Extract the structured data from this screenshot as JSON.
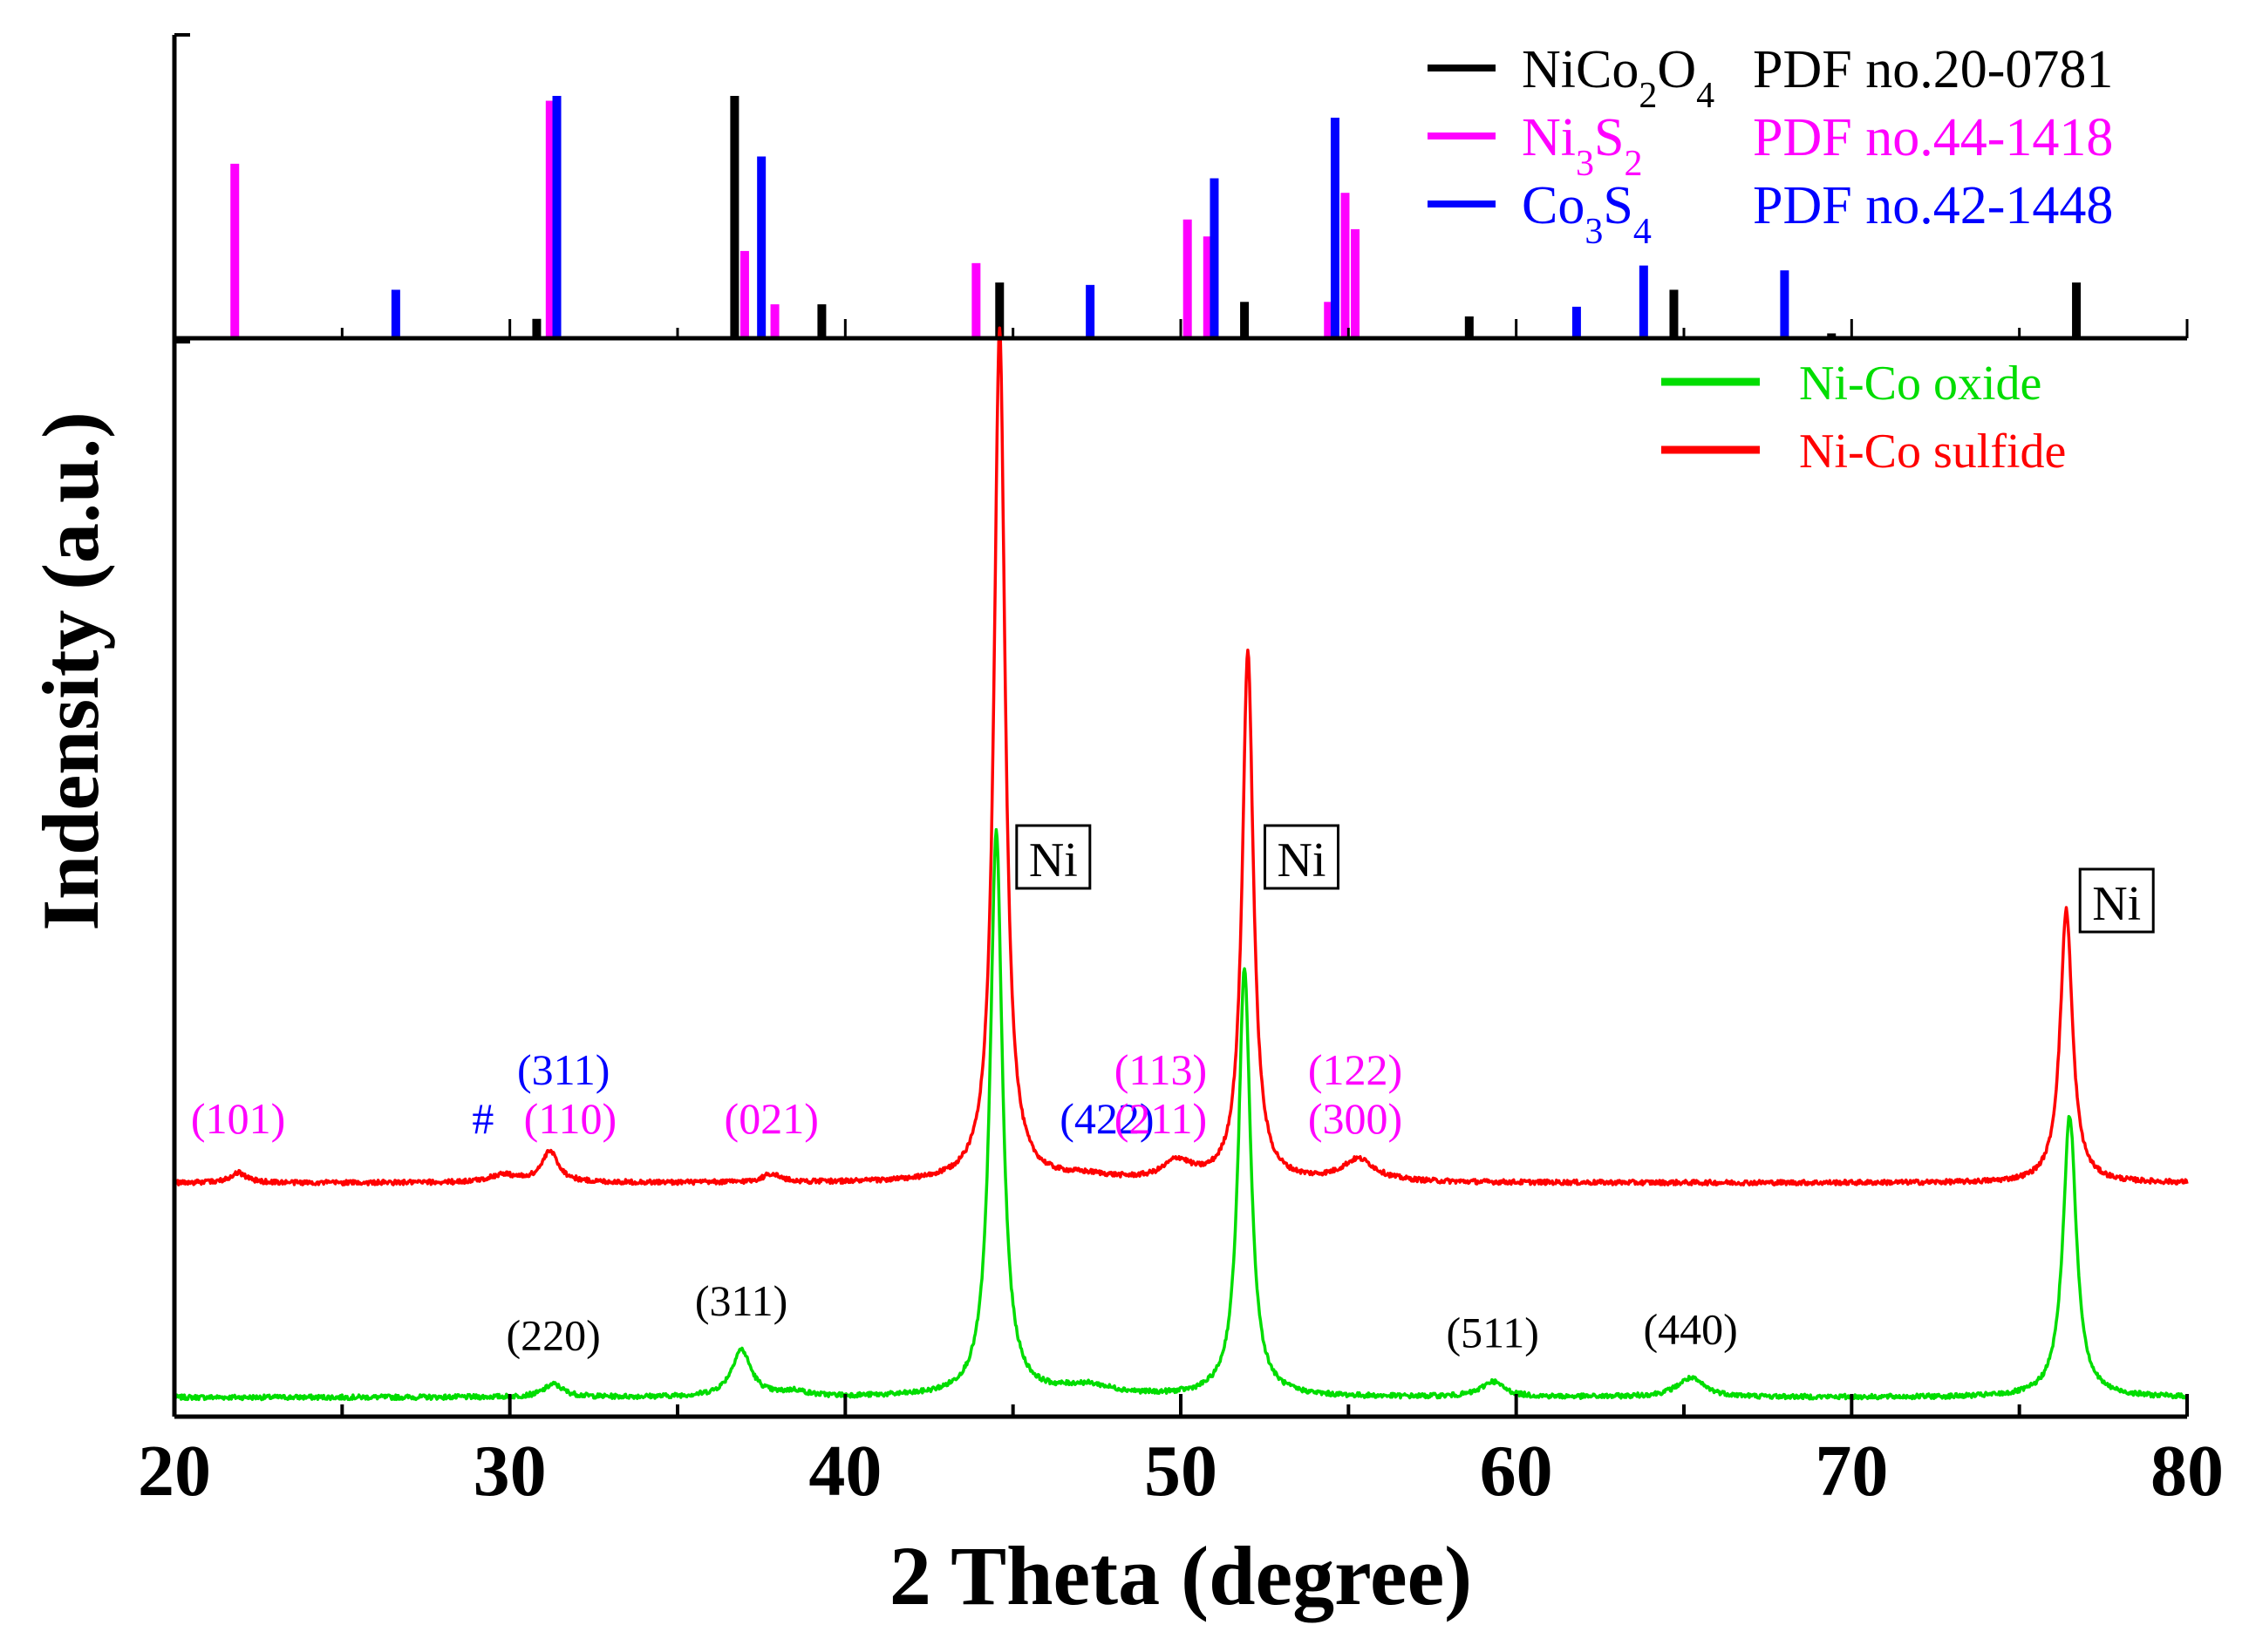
{
  "chart_data": {
    "type": "line",
    "xlabel": "2 Theta (degree)",
    "ylabel": "Indensity (a.u.)",
    "xlim": [
      20,
      80
    ],
    "xticks": [
      20,
      30,
      40,
      50,
      60,
      70,
      80
    ],
    "top_panel": {
      "type": "bar",
      "ylim": [
        0,
        100
      ],
      "legend_position": "top-right",
      "series": [
        {
          "name_parts": [
            {
              "t": "NiCo"
            },
            {
              "t": "2",
              "sub": true
            },
            {
              "t": "O"
            },
            {
              "t": "4",
              "sub": true
            }
          ],
          "pdf": "PDF no.20-0781",
          "color": "#000000",
          "bars": [
            [
              30.8,
              8
            ],
            [
              36.7,
              100
            ],
            [
              39.3,
              14
            ],
            [
              44.6,
              23
            ],
            [
              51.9,
              15
            ],
            [
              58.6,
              9
            ],
            [
              64.7,
              20
            ],
            [
              69.4,
              2
            ],
            [
              76.7,
              23
            ]
          ]
        },
        {
          "name_parts": [
            {
              "t": "Ni"
            },
            {
              "t": "3",
              "sub": true
            },
            {
              "t": "S"
            },
            {
              "t": "2",
              "sub": true
            }
          ],
          "pdf": "PDF no.44-1418",
          "color": "#ff00ff",
          "bars": [
            [
              21.8,
              72
            ],
            [
              31.2,
              98
            ],
            [
              37.0,
              36
            ],
            [
              37.9,
              14
            ],
            [
              43.9,
              31
            ],
            [
              50.2,
              49
            ],
            [
              50.8,
              42
            ],
            [
              54.4,
              15
            ],
            [
              54.9,
              60
            ],
            [
              55.2,
              45
            ]
          ]
        },
        {
          "name_parts": [
            {
              "t": "Co"
            },
            {
              "t": "3",
              "sub": true
            },
            {
              "t": "S"
            },
            {
              "t": "4",
              "sub": true
            }
          ],
          "pdf": "PDF no.42-1448",
          "color": "#0000ff",
          "bars": [
            [
              26.6,
              20
            ],
            [
              31.4,
              100
            ],
            [
              37.5,
              75
            ],
            [
              47.3,
              22
            ],
            [
              51.0,
              66
            ],
            [
              54.6,
              91
            ],
            [
              61.8,
              13
            ],
            [
              63.8,
              30
            ],
            [
              68.0,
              28
            ]
          ]
        }
      ]
    },
    "series": [
      {
        "name": "Ni-Co oxide",
        "color": "#00dd00",
        "baseline": 0,
        "peaks": [
          [
            31.3,
            1.5,
            0.35
          ],
          [
            36.9,
            5.5,
            0.35
          ],
          [
            38.5,
            0.6,
            0.4
          ],
          [
            44.5,
            66,
            0.22
          ],
          [
            47.2,
            1.2,
            1.0
          ],
          [
            51.9,
            50,
            0.22
          ],
          [
            59.3,
            1.8,
            0.4
          ],
          [
            65.2,
            2.2,
            0.5
          ],
          [
            76.5,
            33,
            0.24
          ]
        ],
        "hkl_labels": [
          {
            "x": 31.3,
            "text": "(220)"
          },
          {
            "x": 36.9,
            "text": "(311)"
          },
          {
            "x": 59.3,
            "text": "(511)"
          },
          {
            "x": 65.2,
            "text": "(440)"
          }
        ]
      },
      {
        "name": "Ni-Co sulfide",
        "color": "#ff0000",
        "baseline": 26,
        "peaks": [
          [
            21.9,
            1.2,
            0.3
          ],
          [
            29.8,
            0.9,
            0.5
          ],
          [
            31.2,
            3.6,
            0.3
          ],
          [
            37.8,
            1.0,
            0.3
          ],
          [
            44.6,
            100,
            0.2
          ],
          [
            47.2,
            0.6,
            1.0
          ],
          [
            49.9,
            2.2,
            0.5
          ],
          [
            52.0,
            62,
            0.2
          ],
          [
            55.3,
            2.6,
            0.6
          ],
          [
            76.4,
            32,
            0.22
          ]
        ],
        "hkl_labels": [
          {
            "x": 21.9,
            "text": "(101)",
            "color": "#ff00ff"
          },
          {
            "x": 29.2,
            "text": "#",
            "color": "#0000ff"
          },
          {
            "x": 31.6,
            "text": "(311)",
            "color": "#0000ff",
            "row": 2
          },
          {
            "x": 31.8,
            "text": "(110)",
            "color": "#ff00ff"
          },
          {
            "x": 37.8,
            "text": "(021)",
            "color": "#ff00ff"
          },
          {
            "x": 47.8,
            "text": "(422)",
            "color": "#0000ff"
          },
          {
            "x": 49.4,
            "text": "(113)",
            "color": "#ff00ff",
            "row": 2
          },
          {
            "x": 49.4,
            "text": "(211)",
            "color": "#ff00ff",
            "row": 1
          },
          {
            "x": 55.2,
            "text": "(122)",
            "color": "#ff00ff",
            "row": 2
          },
          {
            "x": 55.2,
            "text": "(300)",
            "color": "#ff00ff",
            "row": 1
          }
        ]
      }
    ],
    "ni_labels": [
      {
        "x": 46.2,
        "text": "Ni"
      },
      {
        "x": 53.6,
        "text": "Ni"
      },
      {
        "x": 77.9,
        "text": "Ni"
      }
    ]
  }
}
